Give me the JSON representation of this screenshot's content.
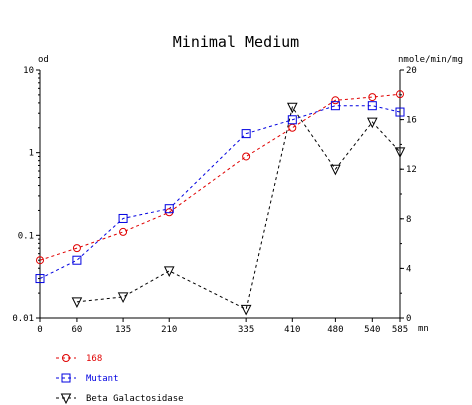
{
  "chart_data": {
    "type": "line",
    "title": "Minimal Medium",
    "x": [
      0,
      60,
      135,
      210,
      335,
      410,
      480,
      540,
      585
    ],
    "xlabel": "mn",
    "xlim": [
      0,
      585
    ],
    "x_ticks": [
      "0",
      "60",
      "135",
      "210",
      "335",
      "410",
      "480",
      "540",
      "585"
    ],
    "ylabel_left": "od",
    "ylim_left": [
      0.01,
      10
    ],
    "yscale_left": "log",
    "y_ticks_left": [
      "10",
      "1",
      "0.1",
      "0.01"
    ],
    "ylabel_right": "nmole/min/mg",
    "ylim_right": [
      0,
      20
    ],
    "y_ticks_right": [
      "20",
      "16",
      "12",
      "8",
      "4",
      "0"
    ],
    "grid": false,
    "legend_position": "bottom-left",
    "series": [
      {
        "name": "168",
        "axis": "left",
        "color": "#e00000",
        "marker": "circle",
        "line": "dashed",
        "x": [
          0,
          60,
          135,
          210,
          335,
          410,
          480,
          540,
          585
        ],
        "values": [
          0.05,
          0.07,
          0.11,
          0.19,
          0.9,
          2.0,
          4.3,
          4.7,
          5.1
        ]
      },
      {
        "name": "Mutant",
        "axis": "left",
        "color": "#0000e0",
        "marker": "square",
        "line": "dashed",
        "x": [
          0,
          60,
          135,
          210,
          335,
          410,
          480,
          540,
          585
        ],
        "values": [
          0.03,
          0.05,
          0.16,
          0.21,
          1.7,
          2.5,
          3.7,
          3.7,
          3.1
        ]
      },
      {
        "name": "Beta Galactosidase",
        "axis": "right",
        "color": "#000000",
        "marker": "triangle-down",
        "line": "dashed",
        "x": [
          60,
          135,
          210,
          335,
          410,
          480,
          540,
          585
        ],
        "values": [
          1.3,
          1.7,
          3.8,
          0.7,
          17.0,
          12.0,
          15.8,
          13.4
        ]
      }
    ]
  }
}
